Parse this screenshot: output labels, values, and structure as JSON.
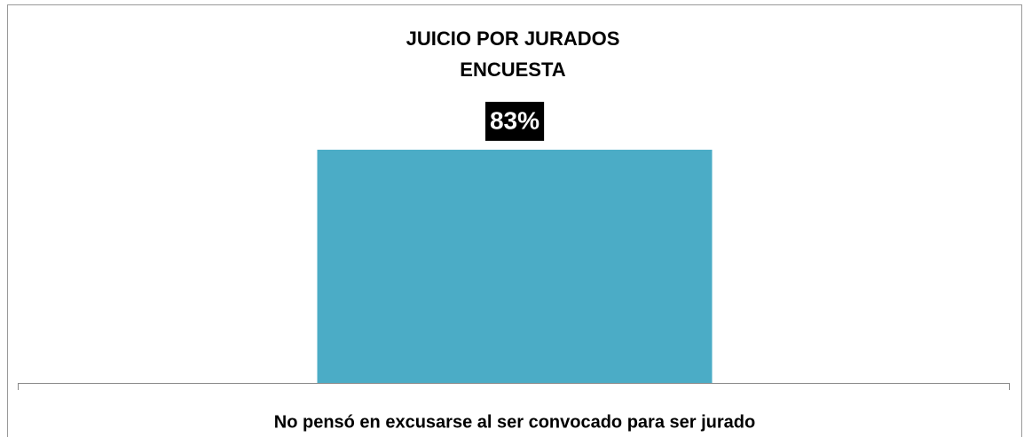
{
  "chart_data": {
    "type": "bar",
    "title": "JUICIO POR JURADOS",
    "subtitle": "ENCUESTA",
    "categories": [
      "No pensó en excusarse al ser convocado para ser jurado"
    ],
    "values": [
      83
    ],
    "value_labels": [
      "83%"
    ],
    "color": "#4bacc6",
    "ylim": [
      0,
      100
    ]
  }
}
